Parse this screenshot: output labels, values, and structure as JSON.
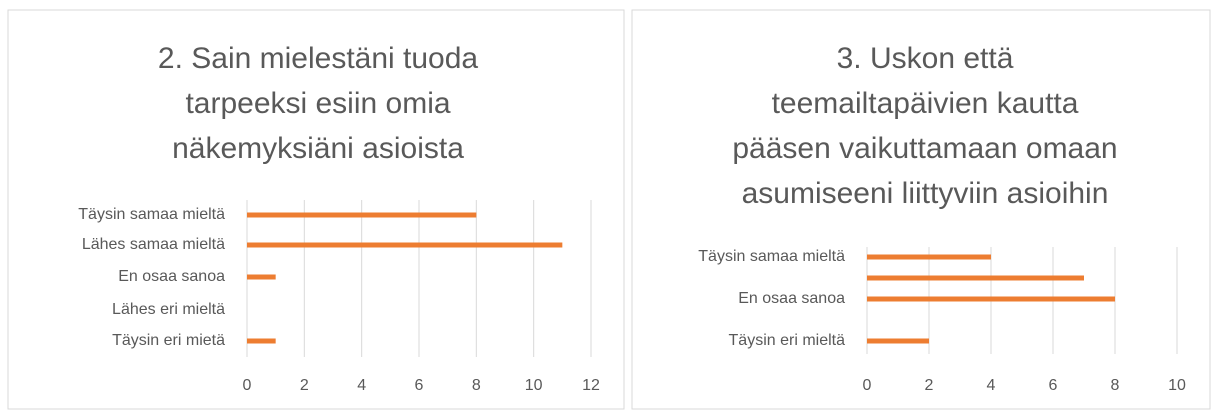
{
  "chart_data": [
    {
      "type": "barh",
      "title": [
        "2. Sain mielestäni tuoda",
        "tarpeeksi esiin omia",
        "näkemyksiäni asioista"
      ],
      "categories": [
        "Täysin samaa mieltä",
        "Lähes samaa mieltä",
        "En osaa sanoa",
        "Lähes eri mieltä",
        "Täysin eri mietä"
      ],
      "values": [
        8,
        11,
        1,
        0,
        1
      ],
      "color": "#ed7d31",
      "xlim": [
        0,
        12
      ],
      "xticks": [
        0,
        2,
        4,
        6,
        8,
        10,
        12
      ],
      "grid": true
    },
    {
      "type": "barh",
      "title": [
        "3. Uskon että",
        "teemailtapäivien kautta",
        "pääsen vaikuttamaan omaan",
        "asumiseeni liittyviin asioihin"
      ],
      "categories": [
        "Täysin samaa mieltä",
        null,
        "En osaa sanoa",
        null,
        "Täysin eri mieltä"
      ],
      "values": [
        4,
        7,
        8,
        0,
        2
      ],
      "color": "#ed7d31",
      "xlim": [
        0,
        10
      ],
      "xticks": [
        0,
        2,
        4,
        6,
        8,
        10
      ],
      "grid": true
    }
  ]
}
